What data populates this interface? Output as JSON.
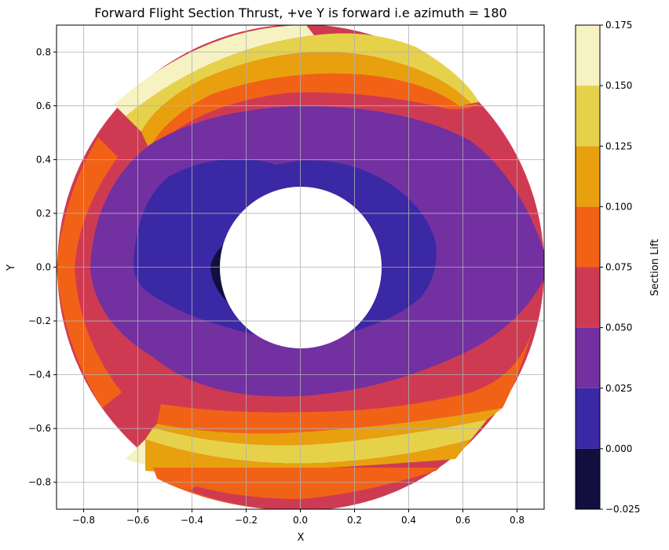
{
  "chart_data": {
    "type": "heatmap",
    "title": "Forward Flight Section Thrust, +ve Y is forward i.e azimuth = 180",
    "xlabel": "X",
    "ylabel": "Y",
    "xlim": [
      -0.9,
      0.9
    ],
    "ylim": [
      -0.9,
      0.9
    ],
    "xticks": [
      -0.8,
      -0.6,
      -0.4,
      -0.2,
      0.0,
      0.2,
      0.4,
      0.6,
      0.8
    ],
    "yticks": [
      -0.8,
      -0.6,
      -0.4,
      -0.2,
      0.0,
      0.2,
      0.4,
      0.6,
      0.8
    ],
    "xtick_labels": [
      "−0.8",
      "−0.6",
      "−0.4",
      "−0.2",
      "0.0",
      "0.2",
      "0.4",
      "0.6",
      "0.8"
    ],
    "ytick_labels": [
      "−0.8",
      "−0.6",
      "−0.4",
      "−0.2",
      "0.0",
      "0.2",
      "0.4",
      "0.6",
      "0.8"
    ],
    "grid": true,
    "rotor_outer_radius": 0.9,
    "rotor_inner_radius": 0.3,
    "colorbar": {
      "label": "Section Lift",
      "levels": [
        -0.025,
        0.0,
        0.025,
        0.05,
        0.075,
        0.1,
        0.125,
        0.15,
        0.175
      ],
      "tick_labels": [
        "−0.025",
        "0.000",
        "0.025",
        "0.050",
        "0.075",
        "0.100",
        "0.125",
        "0.150",
        "0.175"
      ],
      "colors": [
        "#120f3f",
        "#3b28a4",
        "#7230a1",
        "#cf3a53",
        "#f26216",
        "#e8a00f",
        "#e6d24a",
        "#f6f2c2"
      ]
    }
  }
}
